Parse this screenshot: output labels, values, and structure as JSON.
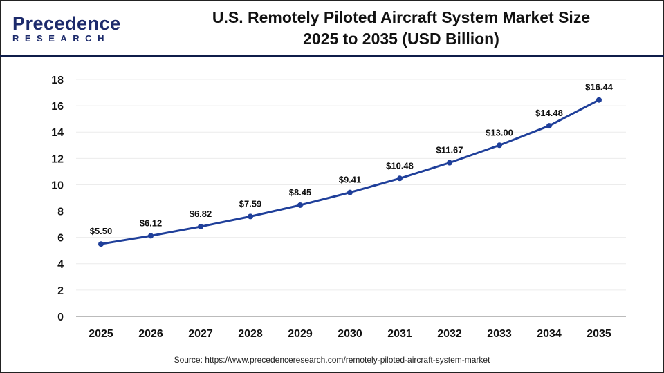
{
  "logo": {
    "line1": "Precedence",
    "line2": "RESEARCH"
  },
  "header": {
    "title_line1": "U.S. Remotely Piloted Aircraft System Market Size",
    "title_line2": "2025 to 2035 (USD Billion)"
  },
  "source": "Source: https://www.precedenceresearch.com/remotely-piloted-aircraft-system-market",
  "chart_data": {
    "type": "line",
    "title": "U.S. Remotely Piloted Aircraft System Market Size 2025 to 2035 (USD Billion)",
    "categories": [
      "2025",
      "2026",
      "2027",
      "2028",
      "2029",
      "2030",
      "2031",
      "2032",
      "2033",
      "2034",
      "2035"
    ],
    "values": [
      5.5,
      6.12,
      6.82,
      7.59,
      8.45,
      9.41,
      10.48,
      11.67,
      13.0,
      14.48,
      16.44
    ],
    "labels": [
      "$5.50",
      "$6.12",
      "$6.82",
      "$7.59",
      "$8.45",
      "$9.41",
      "$10.48",
      "$11.67",
      "$13.00",
      "$14.48",
      "$16.44"
    ],
    "yticks": [
      "0",
      "2",
      "4",
      "6",
      "8",
      "10",
      "12",
      "14",
      "16",
      "18"
    ],
    "ylim": [
      0,
      18
    ],
    "grid": true,
    "line_color": "#1f3f9a"
  }
}
